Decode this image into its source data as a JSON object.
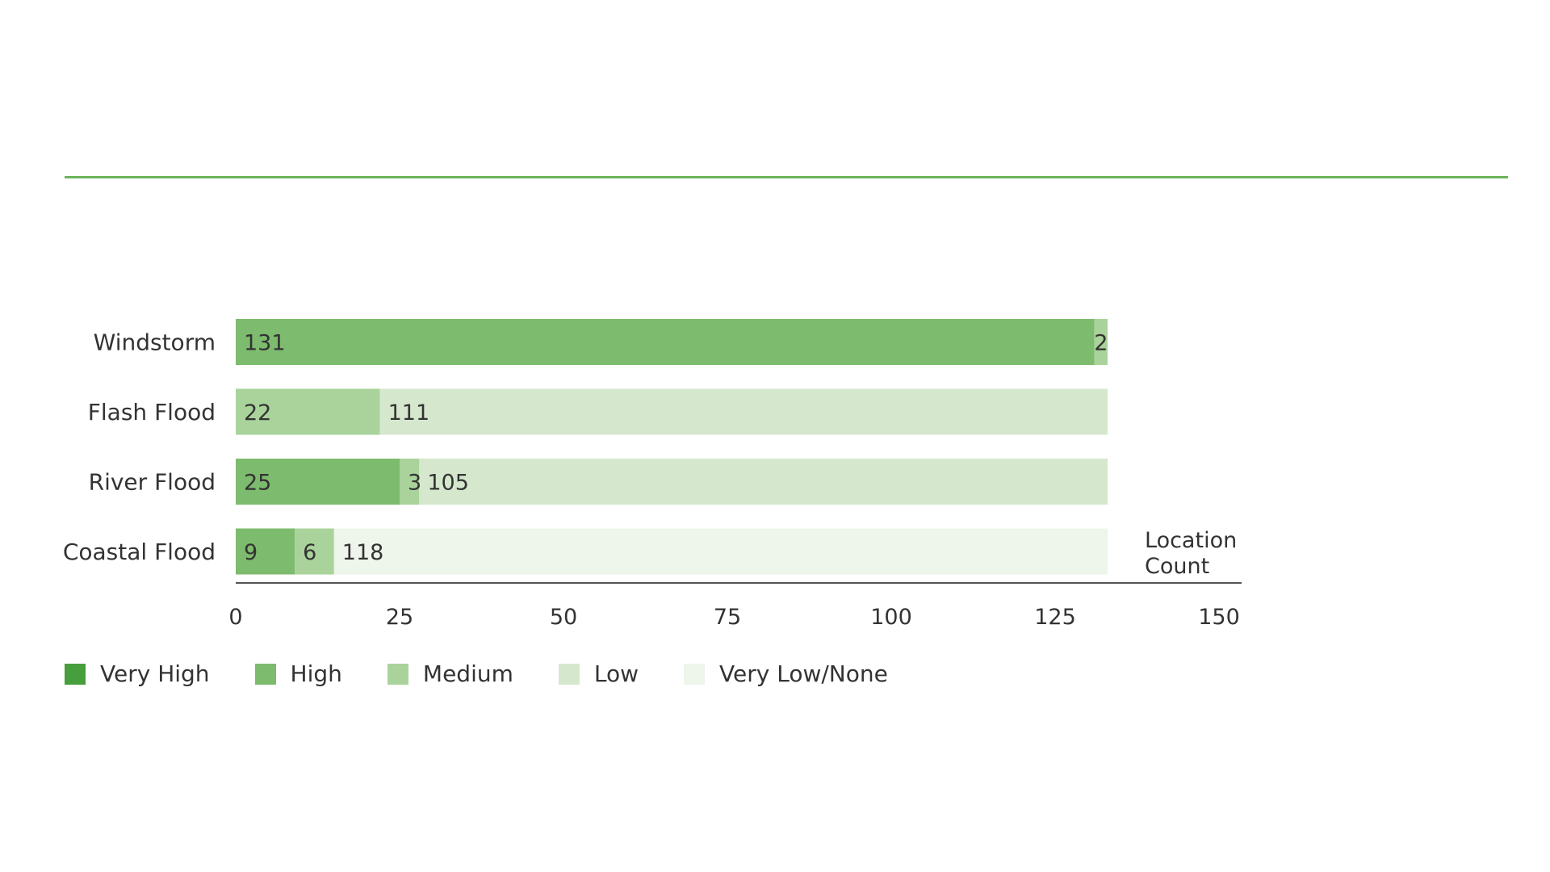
{
  "colors": {
    "rule": "#6cb45a",
    "axis": "#555555",
    "text": "#333333",
    "risk": [
      "#479e3c",
      "#7dbb6e",
      "#a9d39b",
      "#d5e8cd",
      "#eef5ea"
    ]
  },
  "chart_data": {
    "type": "bar",
    "orientation": "horizontal",
    "stacked": true,
    "title": "",
    "xlabel": "Location Count",
    "ylabel": "",
    "xlim": [
      0,
      157
    ],
    "xticks": [
      0,
      25,
      50,
      75,
      100,
      125,
      150
    ],
    "grid": false,
    "legend_position": "bottom-left",
    "categories": [
      "Windstorm",
      "Flash Flood",
      "River Flood",
      "Coastal Flood"
    ],
    "series": [
      {
        "name": "Very High",
        "values": [
          0,
          0,
          0,
          0
        ],
        "labels": [
          "",
          "",
          "",
          ""
        ]
      },
      {
        "name": "High",
        "values": [
          131,
          0,
          25,
          9
        ],
        "labels": [
          "131",
          "",
          "25",
          "9"
        ]
      },
      {
        "name": "Medium",
        "values": [
          2,
          22,
          3,
          6
        ],
        "labels": [
          "2",
          "22",
          "3",
          "6"
        ]
      },
      {
        "name": "Low",
        "values": [
          0,
          111,
          105,
          0
        ],
        "labels": [
          "",
          "111",
          "105",
          ""
        ]
      },
      {
        "name": "Very Low/None",
        "values": [
          0,
          0,
          0,
          118
        ],
        "labels": [
          "",
          "",
          "",
          "118"
        ]
      }
    ]
  }
}
